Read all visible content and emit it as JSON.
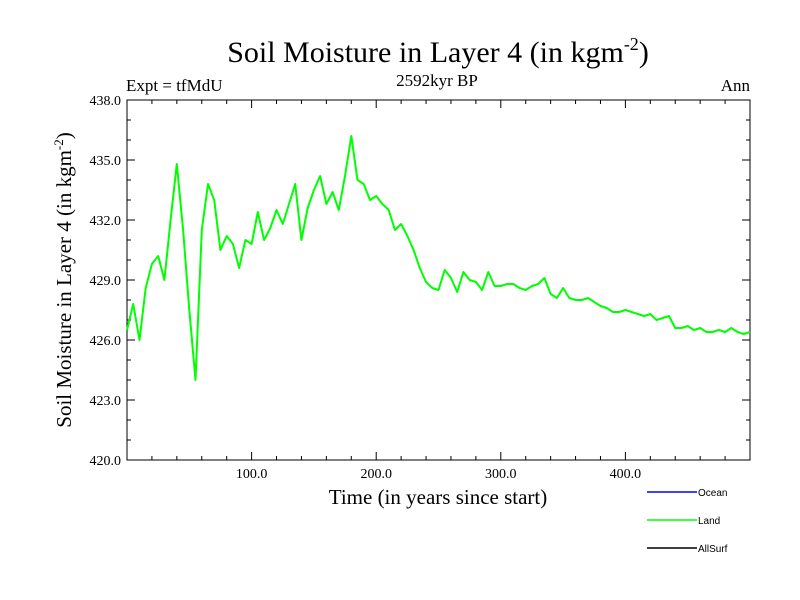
{
  "chart_data": {
    "type": "line",
    "title": "Soil Moisture in Layer 4 (in kgm",
    "title_sup": "-2",
    "title_close": ")",
    "subtitle": "2592kyr BP",
    "left_label": "Expt = tfMdU",
    "right_label": "Ann",
    "xlabel": "Time (in years since start)",
    "ylabel": "Soil Moisture in Layer 4 (in kgm",
    "ylabel_sup": "-2",
    "ylabel_close": ")",
    "xlim": [
      0,
      500
    ],
    "ylim": [
      420,
      438
    ],
    "xticks": [
      100,
      200,
      300,
      400
    ],
    "xtick_labels": [
      "100.0",
      "200.0",
      "300.0",
      "400.0"
    ],
    "yticks": [
      420,
      423,
      426,
      429,
      432,
      435,
      438
    ],
    "ytick_labels": [
      "420.0",
      "423.0",
      "426.0",
      "429.0",
      "432.0",
      "435.0",
      "438.0"
    ],
    "legend": [
      {
        "name": "Ocean",
        "color": "#0000ff"
      },
      {
        "name": "Land",
        "color": "#00ff00"
      },
      {
        "name": "AllSurf",
        "color": "#000000"
      }
    ],
    "series": [
      {
        "name": "Land",
        "color": "#00ff00",
        "x_start": 0,
        "x_step": 5,
        "values": [
          426.5,
          427.8,
          426.0,
          428.6,
          429.8,
          430.2,
          429.0,
          432.0,
          434.8,
          431.5,
          427.5,
          424.0,
          431.5,
          433.8,
          433.0,
          430.5,
          431.2,
          430.8,
          429.6,
          431.0,
          430.8,
          432.4,
          431.0,
          431.6,
          432.5,
          431.8,
          432.8,
          433.8,
          431.0,
          432.6,
          433.5,
          434.2,
          432.8,
          433.4,
          432.5,
          434.2,
          436.2,
          434.0,
          433.8,
          433.0,
          433.2,
          432.8,
          432.5,
          431.5,
          431.8,
          431.2,
          430.5,
          429.6,
          428.9,
          428.6,
          428.5,
          429.5,
          429.1,
          428.4,
          429.4,
          429.0,
          428.9,
          428.5,
          429.4,
          428.7,
          428.7,
          428.8,
          428.8,
          428.6,
          428.5,
          428.7,
          428.8,
          429.1,
          428.3,
          428.1,
          428.6,
          428.1,
          428.0,
          428.0,
          428.1,
          427.9,
          427.7,
          427.6,
          427.4,
          427.4,
          427.5,
          427.4,
          427.3,
          427.2,
          427.3,
          427.0,
          427.1,
          427.2,
          426.6,
          426.6,
          426.7,
          426.5,
          426.6,
          426.4,
          426.4,
          426.5,
          426.4,
          426.6,
          426.4,
          426.3,
          426.4
        ]
      }
    ]
  }
}
